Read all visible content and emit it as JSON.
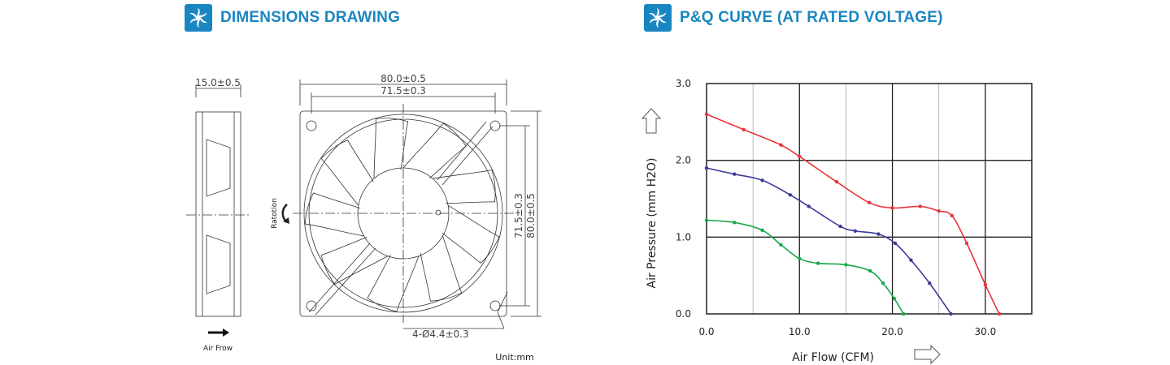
{
  "left_section": {
    "title": "DIMENSIONS DRAWING",
    "side_view": {
      "width_dim": "15.0±0.5",
      "airflow_label": "Air Frow"
    },
    "front_view": {
      "overall_width": "80.0±0.5",
      "hole_spacing_width": "71.5±0.3",
      "hole_spacing_height": "71.5±0.3",
      "overall_height": "80.0±0.5",
      "hole_callout": "4-Ø4.4±0.3",
      "rotation_label": "Ratotion"
    },
    "unit_label": "Unit:mm"
  },
  "right_section": {
    "title": "P&Q CURVE (AT RATED VOLTAGE)"
  },
  "chart_data": {
    "type": "line",
    "xlabel": "Air Flow (CFM)",
    "ylabel": "Air Pressure (mm H2O)",
    "xlim": [
      0,
      35
    ],
    "ylim": [
      0,
      3.0
    ],
    "x_ticks": [
      "0.0",
      "10.0",
      "20.0",
      "30.0"
    ],
    "y_ticks": [
      "0.0",
      "1.0",
      "2.0",
      "3.0"
    ],
    "grid": true,
    "series": [
      {
        "color": "#e8343b",
        "points": [
          [
            0,
            2.6
          ],
          [
            4,
            2.4
          ],
          [
            8,
            2.2
          ],
          [
            10,
            2.05
          ],
          [
            14,
            1.72
          ],
          [
            17.5,
            1.45
          ],
          [
            20,
            1.38
          ],
          [
            23,
            1.4
          ],
          [
            25,
            1.34
          ],
          [
            26.4,
            1.28
          ],
          [
            28,
            0.92
          ],
          [
            30,
            0.38
          ],
          [
            31.5,
            0.0
          ]
        ]
      },
      {
        "color": "#3d3a9a",
        "points": [
          [
            0,
            1.9
          ],
          [
            3,
            1.82
          ],
          [
            6,
            1.74
          ],
          [
            9,
            1.55
          ],
          [
            11,
            1.4
          ],
          [
            14.4,
            1.14
          ],
          [
            16,
            1.08
          ],
          [
            18.5,
            1.04
          ],
          [
            20.3,
            0.92
          ],
          [
            22,
            0.7
          ],
          [
            24,
            0.4
          ],
          [
            26.3,
            0.0
          ]
        ]
      },
      {
        "color": "#17a84a",
        "points": [
          [
            0,
            1.22
          ],
          [
            3,
            1.19
          ],
          [
            6,
            1.09
          ],
          [
            8,
            0.9
          ],
          [
            10,
            0.72
          ],
          [
            12,
            0.66
          ],
          [
            15,
            0.64
          ],
          [
            17.6,
            0.56
          ],
          [
            19,
            0.4
          ],
          [
            20.2,
            0.2
          ],
          [
            21.2,
            0.0
          ]
        ]
      }
    ]
  }
}
